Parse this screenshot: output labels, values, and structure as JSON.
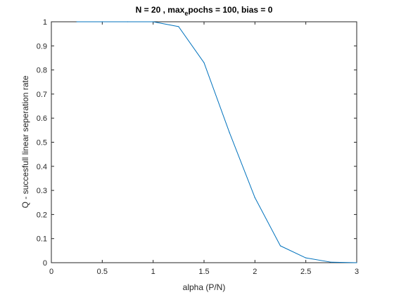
{
  "chart_data": {
    "type": "line",
    "title": {
      "part1": "N = 20 , max",
      "subscript": "e",
      "part2": "pochs = 100, bias = 0"
    },
    "xlabel": "alpha (P/N)",
    "ylabel": "Q - succesfull linear seperation rate",
    "xlim": [
      0,
      3
    ],
    "ylim": [
      0,
      1
    ],
    "xticks": [
      0,
      0.5,
      1,
      1.5,
      2,
      2.5,
      3
    ],
    "xtick_labels": [
      "0",
      "0.5",
      "1",
      "1.5",
      "2",
      "2.5",
      "3"
    ],
    "yticks": [
      0,
      0.1,
      0.2,
      0.3,
      0.4,
      0.5,
      0.6,
      0.7,
      0.8,
      0.9,
      1
    ],
    "ytick_labels": [
      "0",
      "0.1",
      "0.2",
      "0.3",
      "0.4",
      "0.5",
      "0.6",
      "0.7",
      "0.8",
      "0.9",
      "1"
    ],
    "grid": false,
    "series": [
      {
        "color": "#0072BD",
        "x": [
          0.25,
          0.5,
          0.75,
          1.0,
          1.25,
          1.5,
          1.75,
          2.0,
          2.25,
          2.5,
          2.75,
          3.0
        ],
        "y": [
          1.0,
          1.0,
          1.0,
          1.0,
          0.98,
          0.83,
          0.54,
          0.27,
          0.07,
          0.02,
          0.002,
          0.0
        ]
      }
    ]
  }
}
